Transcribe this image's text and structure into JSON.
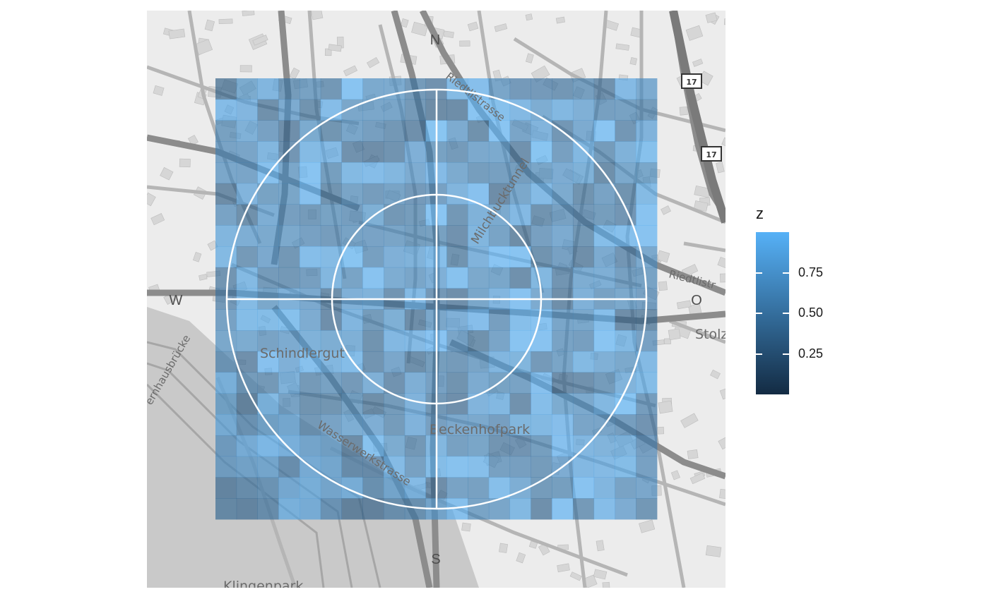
{
  "map": {
    "compass": {
      "north": "N",
      "south": "S",
      "west": "W",
      "east": "O"
    },
    "places": {
      "schindlergut": "Schindlergut",
      "beckenhofpark": "Beckenhofpark",
      "klingenpark": "Klingenpark",
      "stolz": "Stolz"
    },
    "streets": {
      "riedtlistrasse_north": "Riedtlistrasse",
      "riedtlistrasse_east": "Riedtlistr",
      "milchbucktunnel": "Milchbucktunnel",
      "wasserwerkstrasse": "Wasserwerkstrasse",
      "walchebruecke": "ernhausbrücke"
    },
    "road_shields": [
      "17",
      "17"
    ],
    "colors": {
      "background": "#ececec",
      "road_major": "#8a8a8a",
      "road_minor": "#b9b9b9",
      "building": "#d9d9d9",
      "overlay_circle": "#ffffff"
    }
  },
  "heatmap": {
    "grid_size": 21,
    "fill_low": "#132b43",
    "fill_high": "#56b1f7",
    "opacity": 0.65
  },
  "legend": {
    "title": "z",
    "ticks": [
      {
        "value": 0.75,
        "label": "0.75"
      },
      {
        "value": 0.5,
        "label": "0.50"
      },
      {
        "value": 0.25,
        "label": "0.25"
      }
    ],
    "range": [
      0.0,
      1.0
    ]
  }
}
